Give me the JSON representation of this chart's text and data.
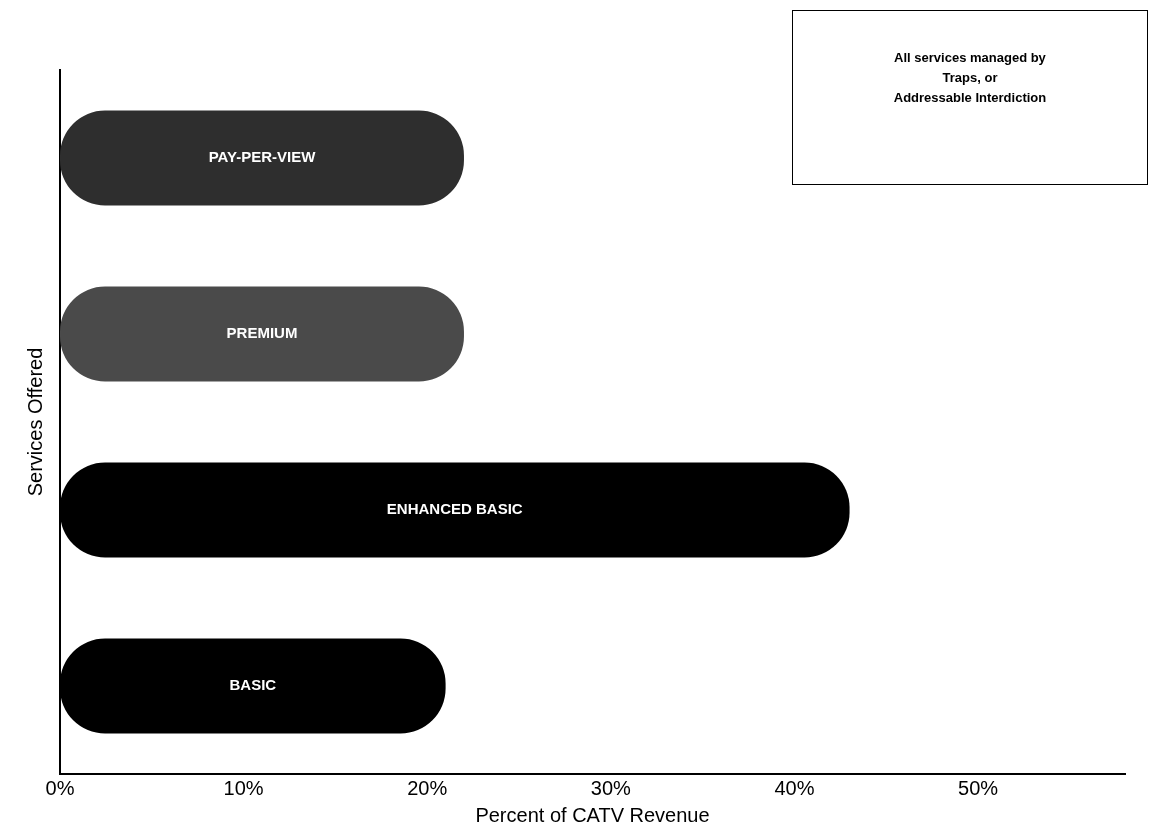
{
  "chart_data": {
    "type": "bar",
    "orientation": "horizontal",
    "xlabel": "Percent of CATV Revenue",
    "ylabel": "Services Offered",
    "categories": [
      "PAY-PER-VIEW",
      "PREMIUM",
      "ENHANCED BASIC",
      "BASIC"
    ],
    "values": [
      22,
      22,
      43,
      21
    ],
    "colors": [
      "#2e2e2e",
      "#4a4a4a",
      "#000000",
      "#000000"
    ],
    "xlim": [
      0,
      58
    ],
    "xticks": [
      {
        "value": 0,
        "label": "0%"
      },
      {
        "value": 10,
        "label": "10%"
      },
      {
        "value": 20,
        "label": "20%"
      },
      {
        "value": 30,
        "label": "30%"
      },
      {
        "value": 40,
        "label": "40%"
      },
      {
        "value": 50,
        "label": "50%"
      }
    ],
    "annotations": [
      "All services managed by\nTraps, or\nAddressable Interdiction"
    ],
    "grid": false,
    "legend": false
  }
}
